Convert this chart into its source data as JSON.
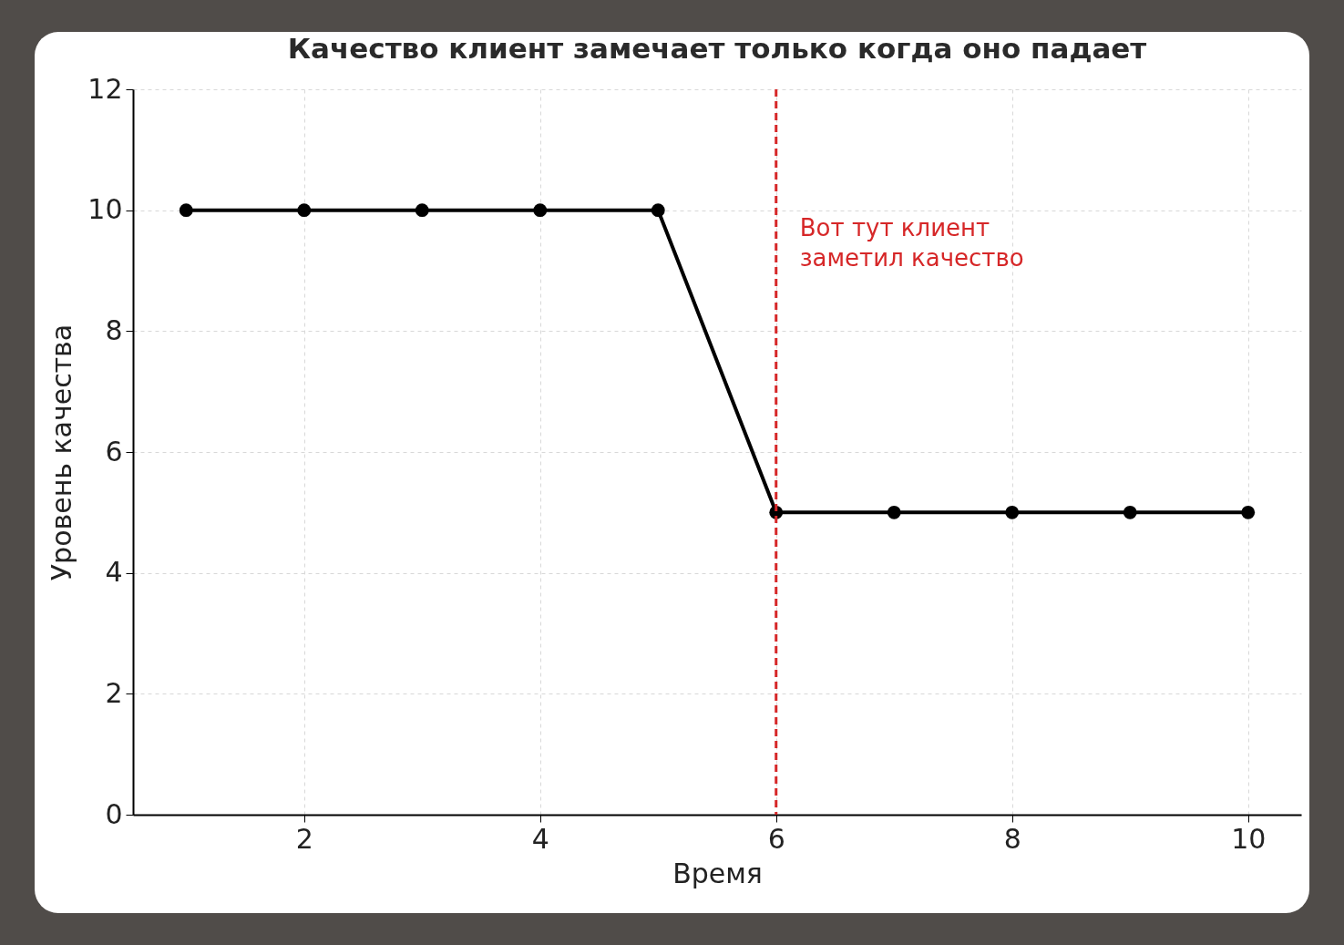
{
  "chart_data": {
    "type": "line",
    "title": "Качество клиент замечает только когда оно падает",
    "xlabel": "Время",
    "ylabel": "Уровень качества",
    "x": [
      1,
      2,
      3,
      4,
      5,
      6,
      7,
      8,
      9,
      10
    ],
    "series": [
      {
        "color": "#000000",
        "values": [
          10,
          10,
          10,
          10,
          10,
          5,
          5,
          5,
          5,
          5
        ]
      }
    ],
    "xlim": [
      0.55,
      10.45
    ],
    "xticks": [
      2,
      4,
      6,
      8,
      10
    ],
    "ylim": [
      0,
      12
    ],
    "yticks": [
      0,
      2,
      4,
      6,
      8,
      10,
      12
    ],
    "grid": true,
    "marker": "circle",
    "line_style": "solid",
    "ref_lines": [
      {
        "axis": "x",
        "value": 6,
        "label": "Вот тут клиент\nзаметил качество",
        "color": "#d62728",
        "line_style": "dashed"
      }
    ]
  }
}
